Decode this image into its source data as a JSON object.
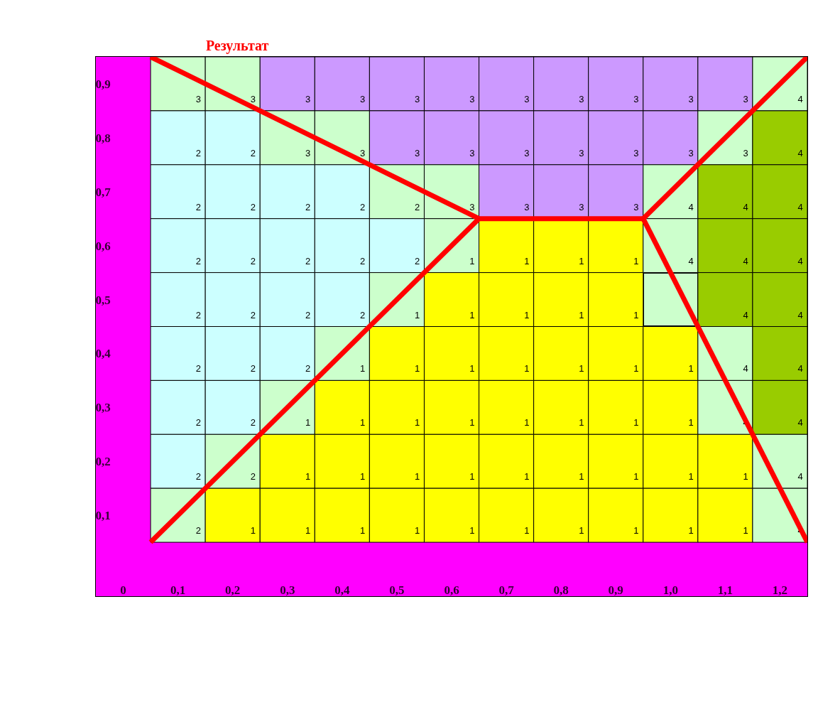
{
  "chart_data": {
    "type": "heatmap",
    "title": "Результат",
    "x": [
      0.1,
      0.2,
      0.3,
      0.4,
      0.5,
      0.6,
      0.7,
      0.8,
      0.9,
      1.0,
      1.1,
      1.2
    ],
    "y": [
      0.9,
      0.8,
      0.7,
      0.6,
      0.5,
      0.4,
      0.3,
      0.2,
      0.1
    ],
    "cells": [
      [
        3,
        3,
        3,
        3,
        3,
        3,
        3,
        3,
        3,
        3,
        3,
        4
      ],
      [
        2,
        2,
        3,
        3,
        3,
        3,
        3,
        3,
        3,
        3,
        3,
        4
      ],
      [
        2,
        2,
        2,
        2,
        2,
        3,
        3,
        3,
        3,
        4,
        4,
        4
      ],
      [
        2,
        2,
        2,
        2,
        2,
        1,
        1,
        1,
        1,
        4,
        4,
        4
      ],
      [
        2,
        2,
        2,
        2,
        1,
        1,
        1,
        1,
        1,
        null,
        4,
        4
      ],
      [
        2,
        2,
        2,
        1,
        1,
        1,
        1,
        1,
        1,
        1,
        4,
        4
      ],
      [
        2,
        2,
        1,
        1,
        1,
        1,
        1,
        1,
        1,
        1,
        4,
        4
      ],
      [
        2,
        2,
        1,
        1,
        1,
        1,
        1,
        1,
        1,
        1,
        1,
        4
      ],
      [
        2,
        1,
        1,
        1,
        1,
        1,
        1,
        1,
        1,
        1,
        1,
        4
      ]
    ],
    "colors": [
      [
        "#ccffcc",
        "#ccffcc",
        "#cc99ff",
        "#cc99ff",
        "#cc99ff",
        "#cc99ff",
        "#cc99ff",
        "#cc99ff",
        "#cc99ff",
        "#cc99ff",
        "#cc99ff",
        "#ccffcc"
      ],
      [
        "#ccffff",
        "#ccffff",
        "#ccffcc",
        "#ccffcc",
        "#cc99ff",
        "#cc99ff",
        "#cc99ff",
        "#cc99ff",
        "#cc99ff",
        "#cc99ff",
        "#ccffcc",
        "#99cc00"
      ],
      [
        "#ccffff",
        "#ccffff",
        "#ccffff",
        "#ccffff",
        "#ccffcc",
        "#ccffcc",
        "#cc99ff",
        "#cc99ff",
        "#cc99ff",
        "#ccffcc",
        "#99cc00",
        "#99cc00"
      ],
      [
        "#ccffff",
        "#ccffff",
        "#ccffff",
        "#ccffff",
        "#ccffff",
        "#ccffcc",
        "#ffff00",
        "#ffff00",
        "#ffff00",
        "#ccffcc",
        "#99cc00",
        "#99cc00"
      ],
      [
        "#ccffff",
        "#ccffff",
        "#ccffff",
        "#ccffff",
        "#ccffcc",
        "#ffff00",
        "#ffff00",
        "#ffff00",
        "#ffff00",
        "#ccffcc",
        "#99cc00",
        "#99cc00"
      ],
      [
        "#ccffff",
        "#ccffff",
        "#ccffff",
        "#ccffcc",
        "#ffff00",
        "#ffff00",
        "#ffff00",
        "#ffff00",
        "#ffff00",
        "#ffff00",
        "#ccffcc",
        "#99cc00"
      ],
      [
        "#ccffff",
        "#ccffff",
        "#ccffcc",
        "#ffff00",
        "#ffff00",
        "#ffff00",
        "#ffff00",
        "#ffff00",
        "#ffff00",
        "#ffff00",
        "#ccffcc",
        "#99cc00"
      ],
      [
        "#ccffff",
        "#ccffcc",
        "#ffff00",
        "#ffff00",
        "#ffff00",
        "#ffff00",
        "#ffff00",
        "#ffff00",
        "#ffff00",
        "#ffff00",
        "#ffff00",
        "#ccffcc"
      ],
      [
        "#ccffcc",
        "#ffff00",
        "#ffff00",
        "#ffff00",
        "#ffff00",
        "#ffff00",
        "#ffff00",
        "#ffff00",
        "#ffff00",
        "#ffff00",
        "#ffff00",
        "#ccffcc"
      ]
    ],
    "series": [
      {
        "type": "line",
        "color": "#ff0000",
        "x": [
          0.05,
          0.65
        ],
        "values": [
          0.95,
          0.65
        ],
        "value_labels": [
          null,
          null
        ]
      },
      {
        "type": "line",
        "color": "#ff0000",
        "x": [
          0.05,
          0.65
        ],
        "values": [
          0.05,
          0.65
        ],
        "value_labels": [
          null,
          null
        ]
      },
      {
        "type": "line",
        "color": "#ff0000",
        "x": [
          0.65,
          0.95
        ],
        "values": [
          0.65,
          0.65
        ],
        "value_labels": [
          null,
          null
        ]
      },
      {
        "type": "line",
        "color": "#ff0000",
        "x": [
          0.95,
          1.25
        ],
        "values": [
          0.65,
          0.95
        ],
        "value_labels": [
          null,
          null
        ]
      },
      {
        "type": "line",
        "color": "#ff0000",
        "x": [
          0.95,
          1.25
        ],
        "values": [
          0.65,
          0.05
        ],
        "value_labels": [
          null,
          null
        ]
      }
    ],
    "xlim": [
      -0.05,
      1.25
    ],
    "ylim": [
      -0.05,
      0.95
    ],
    "xticks": [
      {
        "value": 0,
        "label": "0"
      },
      {
        "value": 0.1,
        "label": "0,1"
      },
      {
        "value": 0.2,
        "label": "0,2"
      },
      {
        "value": 0.3,
        "label": "0,3"
      },
      {
        "value": 0.4,
        "label": "0,4"
      },
      {
        "value": 0.5,
        "label": "0,5"
      },
      {
        "value": 0.6,
        "label": "0,6"
      },
      {
        "value": 0.7,
        "label": "0,7"
      },
      {
        "value": 0.8,
        "label": "0,8"
      },
      {
        "value": 0.9,
        "label": "0,9"
      },
      {
        "value": 1.0,
        "label": "1,0"
      },
      {
        "value": 1.1,
        "label": "1,1"
      },
      {
        "value": 1.2,
        "label": "1,2"
      }
    ],
    "yticks": [
      {
        "value": 0.1,
        "label": "0,1"
      },
      {
        "value": 0.2,
        "label": "0,2"
      },
      {
        "value": 0.3,
        "label": "0,3"
      },
      {
        "value": 0.4,
        "label": "0,4"
      },
      {
        "value": 0.5,
        "label": "0,5"
      },
      {
        "value": 0.6,
        "label": "0,6"
      },
      {
        "value": 0.7,
        "label": "0,7"
      },
      {
        "value": 0.8,
        "label": "0,8"
      },
      {
        "value": 0.9,
        "label": "0,9"
      }
    ],
    "data_labels": true
  }
}
